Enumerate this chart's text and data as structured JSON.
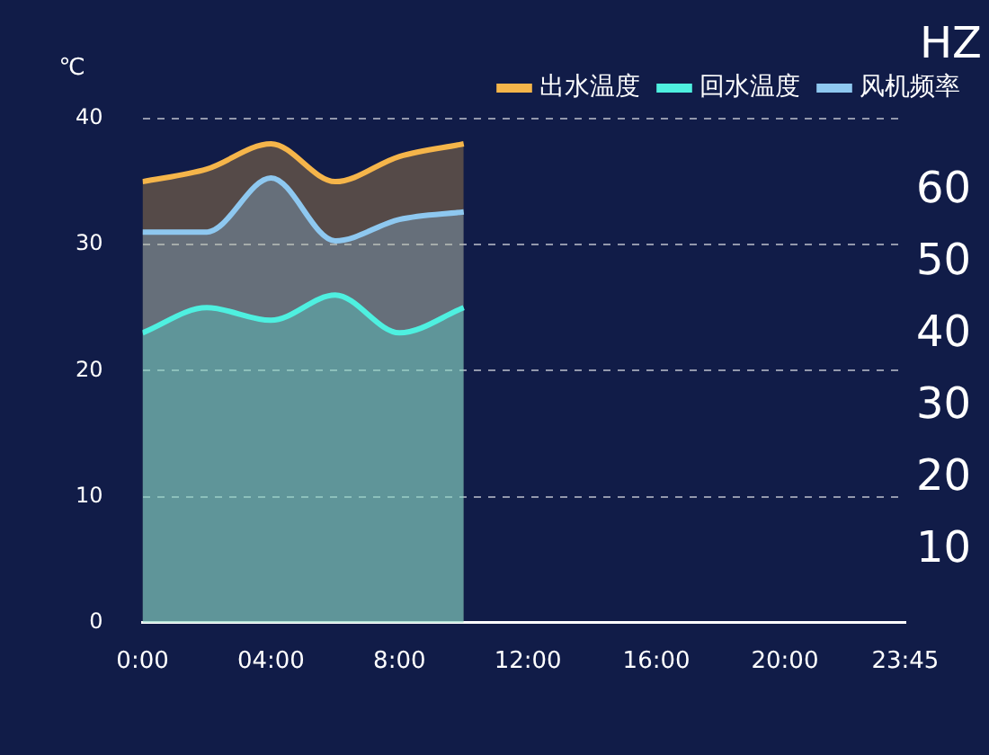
{
  "chart_data": {
    "type": "area",
    "ylabel": "℃",
    "y2label": "HZ",
    "x": [
      0,
      2,
      4,
      6,
      8,
      10
    ],
    "xlim": [
      0,
      23.75
    ],
    "xticks": [
      {
        "value": 0,
        "label": "0:00"
      },
      {
        "value": 4,
        "label": "04:00"
      },
      {
        "value": 8,
        "label": "8:00"
      },
      {
        "value": 12,
        "label": "12:00"
      },
      {
        "value": 16,
        "label": "16:00"
      },
      {
        "value": 20,
        "label": "20:00"
      },
      {
        "value": 23.75,
        "label": "23:45"
      }
    ],
    "ylim": [
      0,
      40
    ],
    "yticks": [
      0,
      10,
      20,
      30,
      40
    ],
    "y2lim": [
      0,
      70
    ],
    "y2ticks": [
      10,
      20,
      30,
      40,
      50,
      60
    ],
    "series": [
      {
        "name": "出水温度",
        "color": "#f5b54a",
        "values": [
          35,
          36,
          38,
          35,
          37,
          38
        ]
      },
      {
        "name": "回水温度",
        "color": "#4ef0e0",
        "values": [
          23,
          25,
          24,
          26,
          23,
          25
        ]
      },
      {
        "name": "风机频率",
        "color": "#8ec8f0",
        "values": [
          31,
          31,
          35.3,
          30.3,
          32,
          32.6
        ]
      }
    ],
    "grid": "y",
    "legend": "top right",
    "marker": "none",
    "line_style": "solid"
  }
}
